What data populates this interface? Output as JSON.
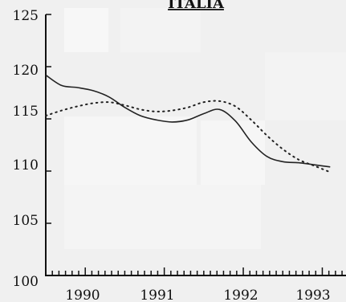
{
  "chart_data": {
    "type": "line",
    "title": "ITALIA",
    "xlabel": "",
    "ylabel": "",
    "ylim": [
      100,
      125
    ],
    "xlim": [
      1989.5,
      1993.3
    ],
    "x_tick_labels": [
      "1990",
      "1991",
      "1992",
      "1993"
    ],
    "y_tick_labels": [
      "100",
      "105",
      "110",
      "115",
      "120",
      "125"
    ],
    "grid": false,
    "legend": "none",
    "series": [
      {
        "style": "solid",
        "color": "#222222",
        "x": [
          1989.5,
          1989.7,
          1989.9,
          1990.1,
          1990.3,
          1990.5,
          1990.7,
          1990.9,
          1991.1,
          1991.3,
          1991.5,
          1991.7,
          1991.9,
          1992.1,
          1992.3,
          1992.5,
          1992.7,
          1992.9,
          1993.1
        ],
        "y": [
          119.2,
          118.2,
          118.0,
          117.7,
          117.1,
          116.1,
          115.3,
          114.9,
          114.7,
          114.9,
          115.5,
          115.9,
          114.8,
          112.8,
          111.4,
          110.9,
          110.8,
          110.6,
          110.4
        ]
      },
      {
        "style": "dotted",
        "color": "#222222",
        "x": [
          1989.5,
          1989.7,
          1989.9,
          1990.1,
          1990.3,
          1990.5,
          1990.7,
          1990.9,
          1991.1,
          1991.3,
          1991.5,
          1991.7,
          1991.9,
          1992.1,
          1992.3,
          1992.5,
          1992.7,
          1992.9,
          1993.1
        ],
        "y": [
          115.3,
          115.8,
          116.2,
          116.5,
          116.6,
          116.3,
          115.9,
          115.7,
          115.8,
          116.1,
          116.6,
          116.7,
          116.2,
          114.9,
          113.4,
          112.1,
          111.1,
          110.5,
          109.9
        ]
      }
    ]
  }
}
